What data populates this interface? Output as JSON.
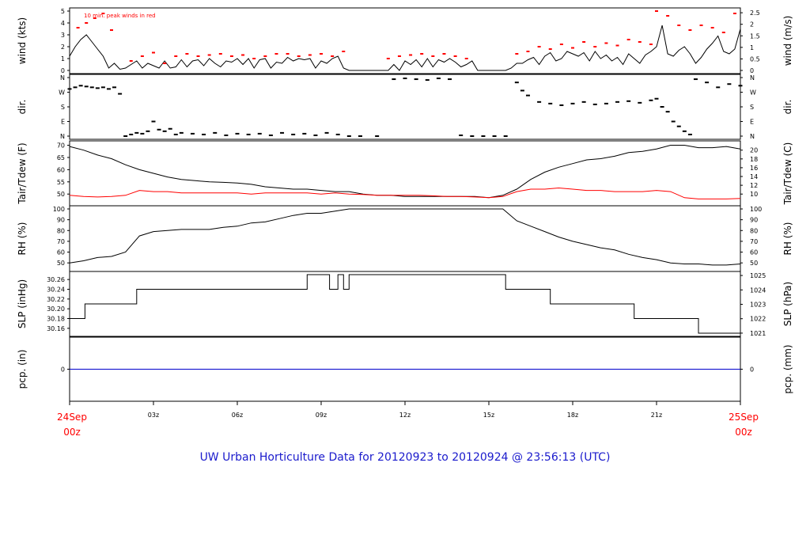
{
  "title": "UW Urban Horticulture Data for 20120923  to  20120924 @ 23:56:13  (UTC)",
  "colors": {
    "title": "#1a1acc",
    "peak": "#ff0000",
    "date": "#ff0000",
    "precip": "#0000cc",
    "line": "#000000"
  },
  "x_axis": {
    "start_label": [
      "24Sep",
      "00z"
    ],
    "end_label": [
      "25Sep",
      "00z"
    ],
    "hours": [
      0,
      3,
      6,
      9,
      12,
      15,
      18,
      21,
      24
    ],
    "tick_labels": [
      "03z",
      "06z",
      "09z",
      "12z",
      "15z",
      "18z",
      "21z"
    ]
  },
  "chart_data": [
    {
      "type": "line",
      "ylabel_left": "wind (kts)",
      "ylabel_right": "wind (m/s)",
      "annotation": "10 min. peak winds in red",
      "ylim": [
        0,
        5
      ],
      "left_ticks": [
        "0",
        "1",
        "2",
        "3",
        "4",
        "5"
      ],
      "right_ticks": [
        "0",
        "0.5",
        "1",
        "1.5",
        "2",
        "2.5"
      ],
      "series": [
        {
          "color": "#000000",
          "x": [
            0,
            0.2,
            0.4,
            0.6,
            0.8,
            1.0,
            1.2,
            1.4,
            1.6,
            1.8,
            2.0,
            2.2,
            2.4,
            2.6,
            2.8,
            3.0,
            3.2,
            3.4,
            3.6,
            3.8,
            4.0,
            4.2,
            4.4,
            4.6,
            4.8,
            5.0,
            5.2,
            5.4,
            5.6,
            5.8,
            6.0,
            6.2,
            6.4,
            6.6,
            6.8,
            7.0,
            7.2,
            7.4,
            7.6,
            7.8,
            8.0,
            8.2,
            8.4,
            8.6,
            8.8,
            9.0,
            9.2,
            9.4,
            9.6,
            9.8,
            10.0,
            10.2,
            11.0,
            11.4,
            11.6,
            11.8,
            12.0,
            12.2,
            12.4,
            12.6,
            12.8,
            13.0,
            13.2,
            13.4,
            13.6,
            13.8,
            14.0,
            14.2,
            14.4,
            14.6,
            15.0,
            15.6,
            15.8,
            16.0,
            16.2,
            16.4,
            16.6,
            16.8,
            17.0,
            17.2,
            17.4,
            17.6,
            17.8,
            18.0,
            18.2,
            18.4,
            18.6,
            18.8,
            19.0,
            19.2,
            19.4,
            19.6,
            19.8,
            20.0,
            20.2,
            20.4,
            20.6,
            20.8,
            21.0,
            21.2,
            21.4,
            21.6,
            21.8,
            22.0,
            22.2,
            22.4,
            22.6,
            22.8,
            23.0,
            23.2,
            23.4,
            23.6,
            23.8,
            24.0
          ],
          "y": [
            1.2,
            2.0,
            2.6,
            3.0,
            2.4,
            1.8,
            1.2,
            0.2,
            0.6,
            0.1,
            0.2,
            0.5,
            0.8,
            0.2,
            0.6,
            0.4,
            0.2,
            0.8,
            0.2,
            0.3,
            0.9,
            0.3,
            0.8,
            0.9,
            0.4,
            1.0,
            0.6,
            0.3,
            0.8,
            0.7,
            1.0,
            0.5,
            1.0,
            0.2,
            0.9,
            1.0,
            0.2,
            0.7,
            0.6,
            1.1,
            0.8,
            1.0,
            0.9,
            1.0,
            0.2,
            0.8,
            0.6,
            1.0,
            1.2,
            0.2,
            0.0,
            0.0,
            0.0,
            0.0,
            0.5,
            0.0,
            0.8,
            0.5,
            0.9,
            0.3,
            1.0,
            0.3,
            0.9,
            0.7,
            1.0,
            0.7,
            0.3,
            0.5,
            0.8,
            0.0,
            0.0,
            0.0,
            0.2,
            0.6,
            0.6,
            0.9,
            1.1,
            0.5,
            1.2,
            1.5,
            0.8,
            1.0,
            1.6,
            1.4,
            1.2,
            1.5,
            0.8,
            1.6,
            1.0,
            1.3,
            0.8,
            1.1,
            0.5,
            1.4,
            1.0,
            0.6,
            1.3,
            1.6,
            2.0,
            3.8,
            1.4,
            1.2,
            1.7,
            2.0,
            1.4,
            0.6,
            1.1,
            1.8,
            2.3,
            2.9,
            1.6,
            1.4,
            1.8,
            3.5
          ]
        },
        {
          "color": "#ff0000",
          "markers": true,
          "x": [
            0.3,
            0.6,
            0.9,
            1.2,
            1.5,
            2.2,
            2.6,
            3.0,
            3.4,
            3.8,
            4.2,
            4.6,
            5.0,
            5.4,
            5.8,
            6.2,
            6.6,
            7.0,
            7.4,
            7.8,
            8.2,
            8.6,
            9.0,
            9.4,
            9.8,
            11.4,
            11.8,
            12.2,
            12.6,
            13.0,
            13.4,
            13.8,
            14.2,
            16.0,
            16.4,
            16.8,
            17.2,
            17.6,
            18.0,
            18.4,
            18.8,
            19.2,
            19.6,
            20.0,
            20.4,
            20.8,
            21.0,
            21.4,
            21.8,
            22.2,
            22.6,
            23.0,
            23.4,
            23.8
          ],
          "y": [
            3.6,
            4.0,
            4.4,
            4.8,
            3.4,
            0.8,
            1.2,
            1.5,
            0.6,
            1.2,
            1.4,
            1.2,
            1.3,
            1.4,
            1.2,
            1.3,
            1.0,
            1.2,
            1.4,
            1.4,
            1.2,
            1.3,
            1.4,
            1.2,
            1.6,
            1.0,
            1.2,
            1.3,
            1.4,
            1.2,
            1.4,
            1.2,
            1.0,
            1.4,
            1.6,
            2.0,
            1.8,
            2.2,
            1.9,
            2.4,
            2.0,
            2.3,
            2.1,
            2.6,
            2.4,
            2.2,
            5.0,
            4.6,
            3.8,
            3.4,
            3.8,
            3.6,
            3.2,
            4.8
          ]
        }
      ]
    },
    {
      "type": "scatter",
      "ylabel_left": "dir.",
      "ylabel_right": "dir.",
      "ylim": [
        0,
        360
      ],
      "left_ticks": [
        "N",
        "E",
        "S",
        "W",
        "N"
      ],
      "right_ticks": [
        "N",
        "E",
        "S",
        "W",
        "N"
      ],
      "series": [
        {
          "color": "#000000",
          "x": [
            0,
            0.2,
            0.4,
            0.6,
            0.8,
            1.0,
            1.2,
            1.4,
            1.6,
            1.8,
            2.0,
            2.2,
            2.4,
            2.6,
            2.8,
            3.0,
            3.2,
            3.4,
            3.6,
            3.8,
            4.0,
            4.4,
            4.8,
            5.2,
            5.6,
            6.0,
            6.4,
            6.8,
            7.2,
            7.6,
            8.0,
            8.4,
            8.8,
            9.2,
            9.6,
            10.0,
            10.4,
            11.0,
            11.6,
            12.0,
            12.4,
            12.8,
            13.2,
            13.6,
            14.0,
            14.4,
            14.8,
            15.2,
            15.6,
            16.0,
            16.2,
            16.4,
            16.8,
            17.2,
            17.6,
            18.0,
            18.4,
            18.8,
            19.2,
            19.6,
            20.0,
            20.4,
            20.8,
            21.0,
            21.2,
            21.4,
            21.6,
            21.8,
            22.0,
            22.2,
            22.4,
            22.8,
            23.2,
            23.6,
            24.0
          ],
          "y": [
            290,
            300,
            310,
            305,
            300,
            295,
            300,
            290,
            300,
            260,
            0,
            10,
            20,
            15,
            30,
            90,
            40,
            30,
            45,
            10,
            20,
            15,
            10,
            20,
            5,
            15,
            10,
            15,
            5,
            20,
            10,
            15,
            5,
            20,
            10,
            0,
            0,
            0,
            350,
            355,
            350,
            345,
            355,
            350,
            5,
            0,
            0,
            0,
            0,
            330,
            280,
            250,
            210,
            200,
            190,
            200,
            210,
            195,
            200,
            210,
            215,
            205,
            220,
            230,
            180,
            150,
            90,
            60,
            30,
            10,
            350,
            330,
            300,
            320,
            310
          ]
        }
      ]
    },
    {
      "type": "line",
      "ylabel_left": "Tair/Tdew (F)",
      "ylabel_right": "Tair/Tdew (C)",
      "ylim": [
        46.5,
        70.5
      ],
      "left_ticks": [
        "50",
        "55",
        "60",
        "65",
        "70"
      ],
      "right_ticks": [
        "10",
        "12",
        "14",
        "16",
        "18",
        "20"
      ],
      "series": [
        {
          "color": "#000000",
          "x": [
            0,
            0.5,
            1,
            1.5,
            2,
            2.5,
            3,
            3.5,
            4,
            4.5,
            5,
            5.5,
            6,
            6.5,
            7,
            7.5,
            8,
            8.5,
            9,
            9.5,
            10,
            10.5,
            11,
            11.5,
            12,
            12.5,
            13,
            13.5,
            14,
            14.5,
            15,
            15.5,
            16,
            16.5,
            17,
            17.5,
            18,
            18.5,
            19,
            19.5,
            20,
            20.5,
            21,
            21.5,
            22,
            22.5,
            23,
            23.5,
            24
          ],
          "y": [
            69.5,
            68,
            66,
            64.5,
            62,
            60,
            58.5,
            57,
            56,
            55.5,
            55,
            54.8,
            54.5,
            54,
            53,
            52.5,
            52,
            52,
            51.5,
            51,
            51,
            50,
            49.5,
            49.5,
            49,
            49,
            49,
            49,
            49,
            49,
            48.5,
            49.5,
            52,
            56,
            59,
            61,
            62.5,
            64,
            64.5,
            65.5,
            67,
            67.5,
            68.5,
            70,
            70,
            69,
            69,
            69.5,
            68.5
          ]
        },
        {
          "color": "#ff0000",
          "x": [
            0,
            0.5,
            1,
            1.5,
            2,
            2.5,
            3,
            3.5,
            4,
            4.5,
            5,
            5.5,
            6,
            6.5,
            7,
            7.5,
            8,
            8.5,
            9,
            9.5,
            10,
            10.5,
            11,
            11.5,
            12,
            12.5,
            13,
            13.5,
            14,
            14.5,
            15,
            15.5,
            16,
            16.5,
            17,
            17.5,
            18,
            18.5,
            19,
            19.5,
            20,
            20.5,
            21,
            21.5,
            22,
            22.5,
            23,
            23.5,
            24
          ],
          "y": [
            49.5,
            49,
            48.8,
            49,
            49.5,
            51.5,
            51,
            51,
            50.5,
            50.5,
            50.5,
            50.5,
            50.5,
            50,
            50.5,
            50.5,
            50.5,
            50.5,
            50,
            50.5,
            50,
            49.8,
            49.5,
            49.5,
            49.5,
            49.5,
            49.3,
            49,
            49,
            48.8,
            48.5,
            49,
            51,
            52,
            52,
            52.5,
            52,
            51.5,
            51.5,
            51,
            51,
            51,
            51.5,
            51,
            48.5,
            48,
            48,
            48,
            48.2
          ]
        }
      ]
    },
    {
      "type": "line",
      "ylabel_left": "RH (%)",
      "ylabel_right": "RH (%)",
      "ylim": [
        45,
        100
      ],
      "left_ticks": [
        "50",
        "60",
        "70",
        "80",
        "90",
        "100"
      ],
      "right_ticks": [
        "50",
        "60",
        "70",
        "80",
        "90",
        "100"
      ],
      "series": [
        {
          "color": "#000000",
          "x": [
            0,
            0.5,
            1,
            1.5,
            2,
            2.5,
            3,
            3.5,
            4,
            4.5,
            5,
            5.5,
            6,
            6.5,
            7,
            7.5,
            8,
            8.5,
            9,
            9.5,
            10,
            10.5,
            11,
            11.5,
            12,
            12.5,
            13,
            13.5,
            14,
            14.5,
            15,
            15.5,
            16,
            16.5,
            17,
            17.5,
            18,
            18.5,
            19,
            19.5,
            20,
            20.5,
            21,
            21.5,
            22,
            22.5,
            23,
            23.5,
            24
          ],
          "y": [
            50,
            52,
            55,
            56,
            60,
            75,
            79,
            80,
            81,
            81,
            81,
            83,
            84,
            87,
            88,
            91,
            94,
            96,
            96,
            98,
            100,
            100,
            100,
            100,
            100,
            100,
            100,
            100,
            100,
            100,
            100,
            100,
            89,
            84,
            79,
            74,
            70,
            67,
            64,
            62,
            58,
            55,
            53,
            50,
            49,
            49,
            48,
            48,
            49
          ]
        }
      ]
    },
    {
      "type": "line",
      "ylabel_left": "SLP (inHg)",
      "ylabel_right": "SLP (hPa)",
      "ylim": [
        30.15,
        30.27
      ],
      "left_ticks": [
        "30.16",
        "30.18",
        "30.20",
        "30.22",
        "30.24",
        "30.26"
      ],
      "right_ticks": [
        "1021",
        "1022",
        "1023",
        "1024",
        "1025"
      ],
      "series": [
        {
          "color": "#000000",
          "x": [
            0,
            0.55,
            0.55,
            2.4,
            2.4,
            8.5,
            8.5,
            9.3,
            9.3,
            9.6,
            9.6,
            9.8,
            9.8,
            10.0,
            10.0,
            15.6,
            15.6,
            17.2,
            17.2,
            20.2,
            20.2,
            22.5,
            22.5,
            24
          ],
          "y": [
            30.18,
            30.18,
            30.21,
            30.21,
            30.24,
            30.24,
            30.27,
            30.27,
            30.24,
            30.24,
            30.27,
            30.27,
            30.24,
            30.24,
            30.27,
            30.27,
            30.24,
            30.24,
            30.21,
            30.21,
            30.18,
            30.18,
            30.15,
            30.15
          ]
        }
      ]
    },
    {
      "type": "line",
      "ylabel_left": "pcp. (in)",
      "ylabel_right": "pcp. (mm)",
      "ylim": [
        -0.5,
        0.5
      ],
      "left_ticks": [
        "0"
      ],
      "right_ticks": [
        "0"
      ],
      "series": [
        {
          "color": "#0000cc",
          "x": [
            0,
            24
          ],
          "y": [
            0,
            0
          ]
        }
      ]
    }
  ]
}
